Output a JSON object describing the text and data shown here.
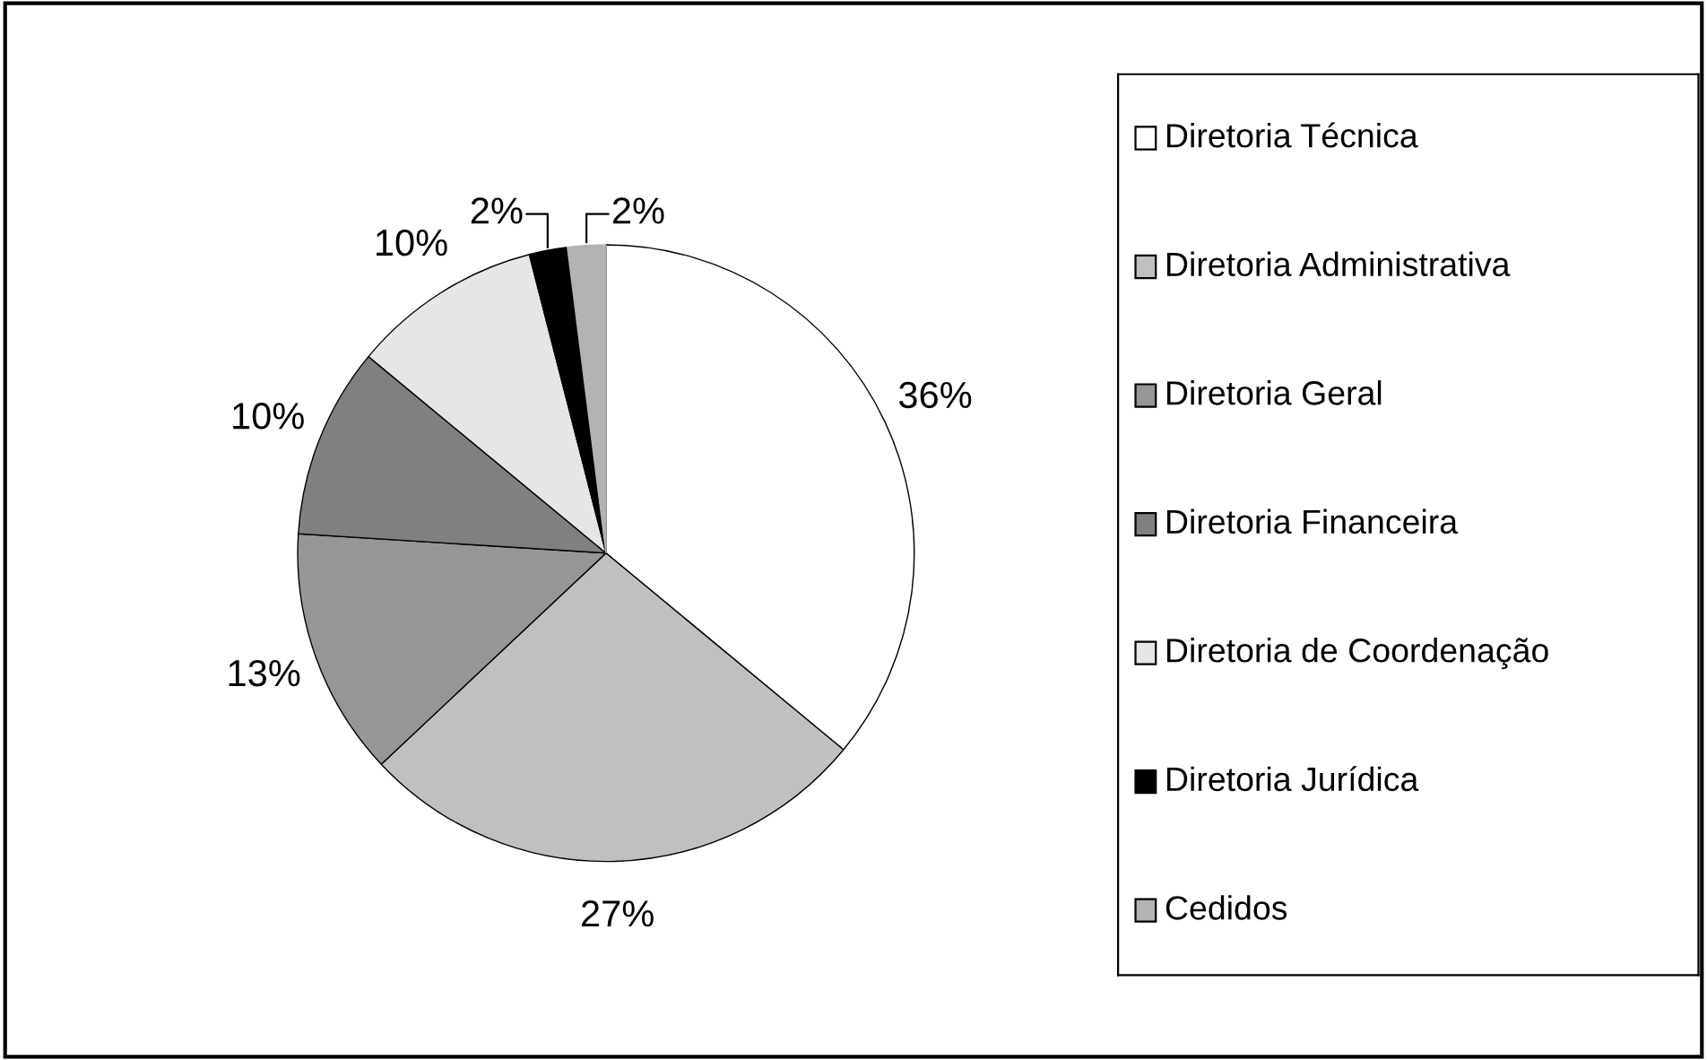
{
  "chart_data": {
    "type": "pie",
    "categories": [
      "Diretoria Técnica",
      "Diretoria Administrativa",
      "Diretoria Geral",
      "Diretoria Financeira",
      "Diretoria de Coordenação",
      "Diretoria Jurídica",
      "Cedidos"
    ],
    "values": [
      36,
      27,
      13,
      10,
      10,
      2,
      2
    ],
    "value_labels": [
      "36%",
      "27%",
      "13%",
      "10%",
      "10%",
      "2%",
      "2%"
    ],
    "colors": [
      "#ffffff",
      "#c0c0c0",
      "#969696",
      "#808080",
      "#e6e6e6",
      "#000000",
      "#b3b3b3"
    ],
    "legend": "right"
  }
}
